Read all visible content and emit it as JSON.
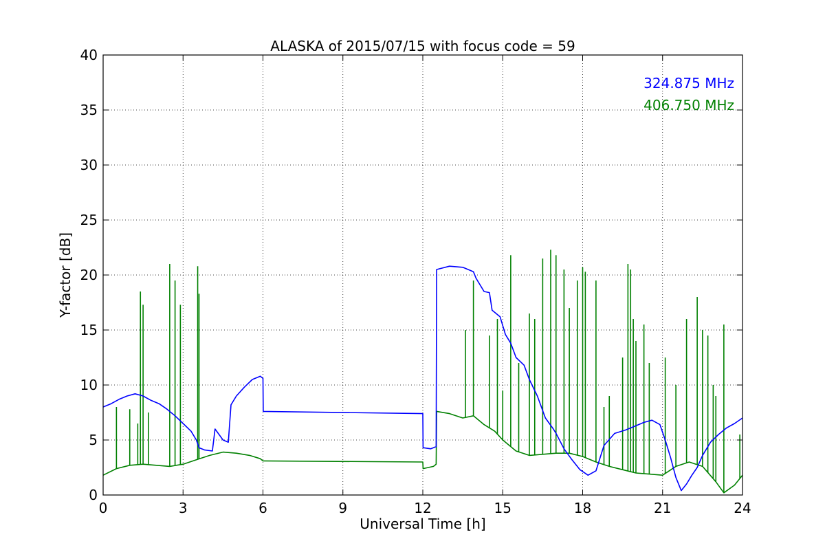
{
  "chart_data": {
    "type": "line",
    "title": "ALASKA of 2015/07/15 with focus code = 59",
    "xlabel": "Universal Time [h]",
    "ylabel": "Y-factor [dB]",
    "xlim": [
      0,
      24
    ],
    "ylim": [
      0,
      40
    ],
    "xticks": [
      0,
      3,
      6,
      9,
      12,
      15,
      18,
      21,
      24
    ],
    "yticks": [
      0,
      5,
      10,
      15,
      20,
      25,
      30,
      35,
      40
    ],
    "grid": true,
    "legend_placement": "top-right",
    "series": [
      {
        "name": "324.875 MHz",
        "color": "#0000ff",
        "x": [
          0,
          0.3,
          0.6,
          0.9,
          1.2,
          1.5,
          1.8,
          2.1,
          2.4,
          2.7,
          3.0,
          3.3,
          3.5,
          3.6,
          3.8,
          4.1,
          4.2,
          4.5,
          4.7,
          4.8,
          5.0,
          5.3,
          5.6,
          5.9,
          6.0,
          6.01,
          12.0,
          12.01,
          12.3,
          12.5,
          12.52,
          13.0,
          13.5,
          13.9,
          14.0,
          14.3,
          14.5,
          14.6,
          14.9,
          15.1,
          15.3,
          15.5,
          15.8,
          16.0,
          16.3,
          16.6,
          16.9,
          17.0,
          17.3,
          17.6,
          17.9,
          18.2,
          18.5,
          18.8,
          19.2,
          19.6,
          20.0,
          20.3,
          20.6,
          20.9,
          21.1,
          21.3,
          21.5,
          21.7,
          21.9,
          22.1,
          22.3,
          22.5,
          22.8,
          23.1,
          23.4,
          23.7,
          24.0
        ],
        "y": [
          8.0,
          8.3,
          8.7,
          9.0,
          9.2,
          9.0,
          8.6,
          8.3,
          7.8,
          7.2,
          6.5,
          5.8,
          5.0,
          4.3,
          4.1,
          4.0,
          6.0,
          5.0,
          4.8,
          8.2,
          9.0,
          9.8,
          10.5,
          10.8,
          10.6,
          7.6,
          7.4,
          4.3,
          4.2,
          4.4,
          20.5,
          20.8,
          20.7,
          20.3,
          19.7,
          18.5,
          18.4,
          16.8,
          16.2,
          14.6,
          13.8,
          12.5,
          11.8,
          10.5,
          9.0,
          7.0,
          6.0,
          5.6,
          4.2,
          3.2,
          2.3,
          1.8,
          2.2,
          4.5,
          5.6,
          5.9,
          6.3,
          6.6,
          6.8,
          6.4,
          5.0,
          3.4,
          1.6,
          0.4,
          1.0,
          1.8,
          2.5,
          3.6,
          4.8,
          5.5,
          6.1,
          6.5,
          7.0
        ]
      },
      {
        "name": "406.750 MHz",
        "color": "#008000",
        "x": [
          0,
          0.5,
          1.0,
          1.5,
          2.0,
          2.5,
          3.0,
          3.5,
          4.0,
          4.5,
          5.0,
          5.5,
          5.9,
          6.0,
          6.01,
          12.0,
          12.01,
          12.4,
          12.5,
          12.52,
          13.0,
          13.5,
          13.9,
          14.3,
          14.7,
          15.0,
          15.5,
          16.0,
          16.5,
          17.0,
          17.5,
          18.0,
          18.5,
          19.0,
          19.5,
          20.0,
          20.5,
          21.0,
          21.5,
          22.0,
          22.5,
          23.0,
          23.3,
          23.7,
          24.0
        ],
        "y": [
          1.8,
          2.4,
          2.7,
          2.8,
          2.7,
          2.6,
          2.8,
          3.2,
          3.6,
          3.9,
          3.8,
          3.6,
          3.3,
          3.1,
          3.1,
          3.0,
          2.4,
          2.6,
          2.8,
          7.6,
          7.4,
          7.0,
          7.2,
          6.4,
          5.8,
          5.0,
          4.0,
          3.6,
          3.7,
          3.8,
          3.8,
          3.5,
          3.0,
          2.6,
          2.3,
          2.0,
          1.9,
          1.8,
          2.6,
          3.0,
          2.6,
          1.2,
          0.2,
          0.9,
          1.8
        ],
        "spikes": [
          [
            0.5,
            8.0
          ],
          [
            1.0,
            7.8
          ],
          [
            1.3,
            6.5
          ],
          [
            1.4,
            18.5
          ],
          [
            1.5,
            17.3
          ],
          [
            1.7,
            7.5
          ],
          [
            2.5,
            21.0
          ],
          [
            2.7,
            19.5
          ],
          [
            2.9,
            17.3
          ],
          [
            3.55,
            20.8
          ],
          [
            3.6,
            18.3
          ],
          [
            13.6,
            15.0
          ],
          [
            13.9,
            19.5
          ],
          [
            14.5,
            14.5
          ],
          [
            14.8,
            16.0
          ],
          [
            15.0,
            9.5
          ],
          [
            15.3,
            21.8
          ],
          [
            15.6,
            12.0
          ],
          [
            16.0,
            16.5
          ],
          [
            16.2,
            16.0
          ],
          [
            16.5,
            21.5
          ],
          [
            16.8,
            22.3
          ],
          [
            17.0,
            21.8
          ],
          [
            17.3,
            20.5
          ],
          [
            17.5,
            17.0
          ],
          [
            17.8,
            19.5
          ],
          [
            18.0,
            20.7
          ],
          [
            18.1,
            20.3
          ],
          [
            18.5,
            19.5
          ],
          [
            18.8,
            8.0
          ],
          [
            19.0,
            9.0
          ],
          [
            19.5,
            12.5
          ],
          [
            19.7,
            21.0
          ],
          [
            19.8,
            20.5
          ],
          [
            19.9,
            16.0
          ],
          [
            20.0,
            14.0
          ],
          [
            20.3,
            15.5
          ],
          [
            20.5,
            12.0
          ],
          [
            21.1,
            12.5
          ],
          [
            21.5,
            10.0
          ],
          [
            21.9,
            16.0
          ],
          [
            22.3,
            18.0
          ],
          [
            22.5,
            15.0
          ],
          [
            22.7,
            14.5
          ],
          [
            22.9,
            10.0
          ],
          [
            23.0,
            9.0
          ],
          [
            23.3,
            15.5
          ],
          [
            23.9,
            5.5
          ]
        ]
      }
    ]
  }
}
